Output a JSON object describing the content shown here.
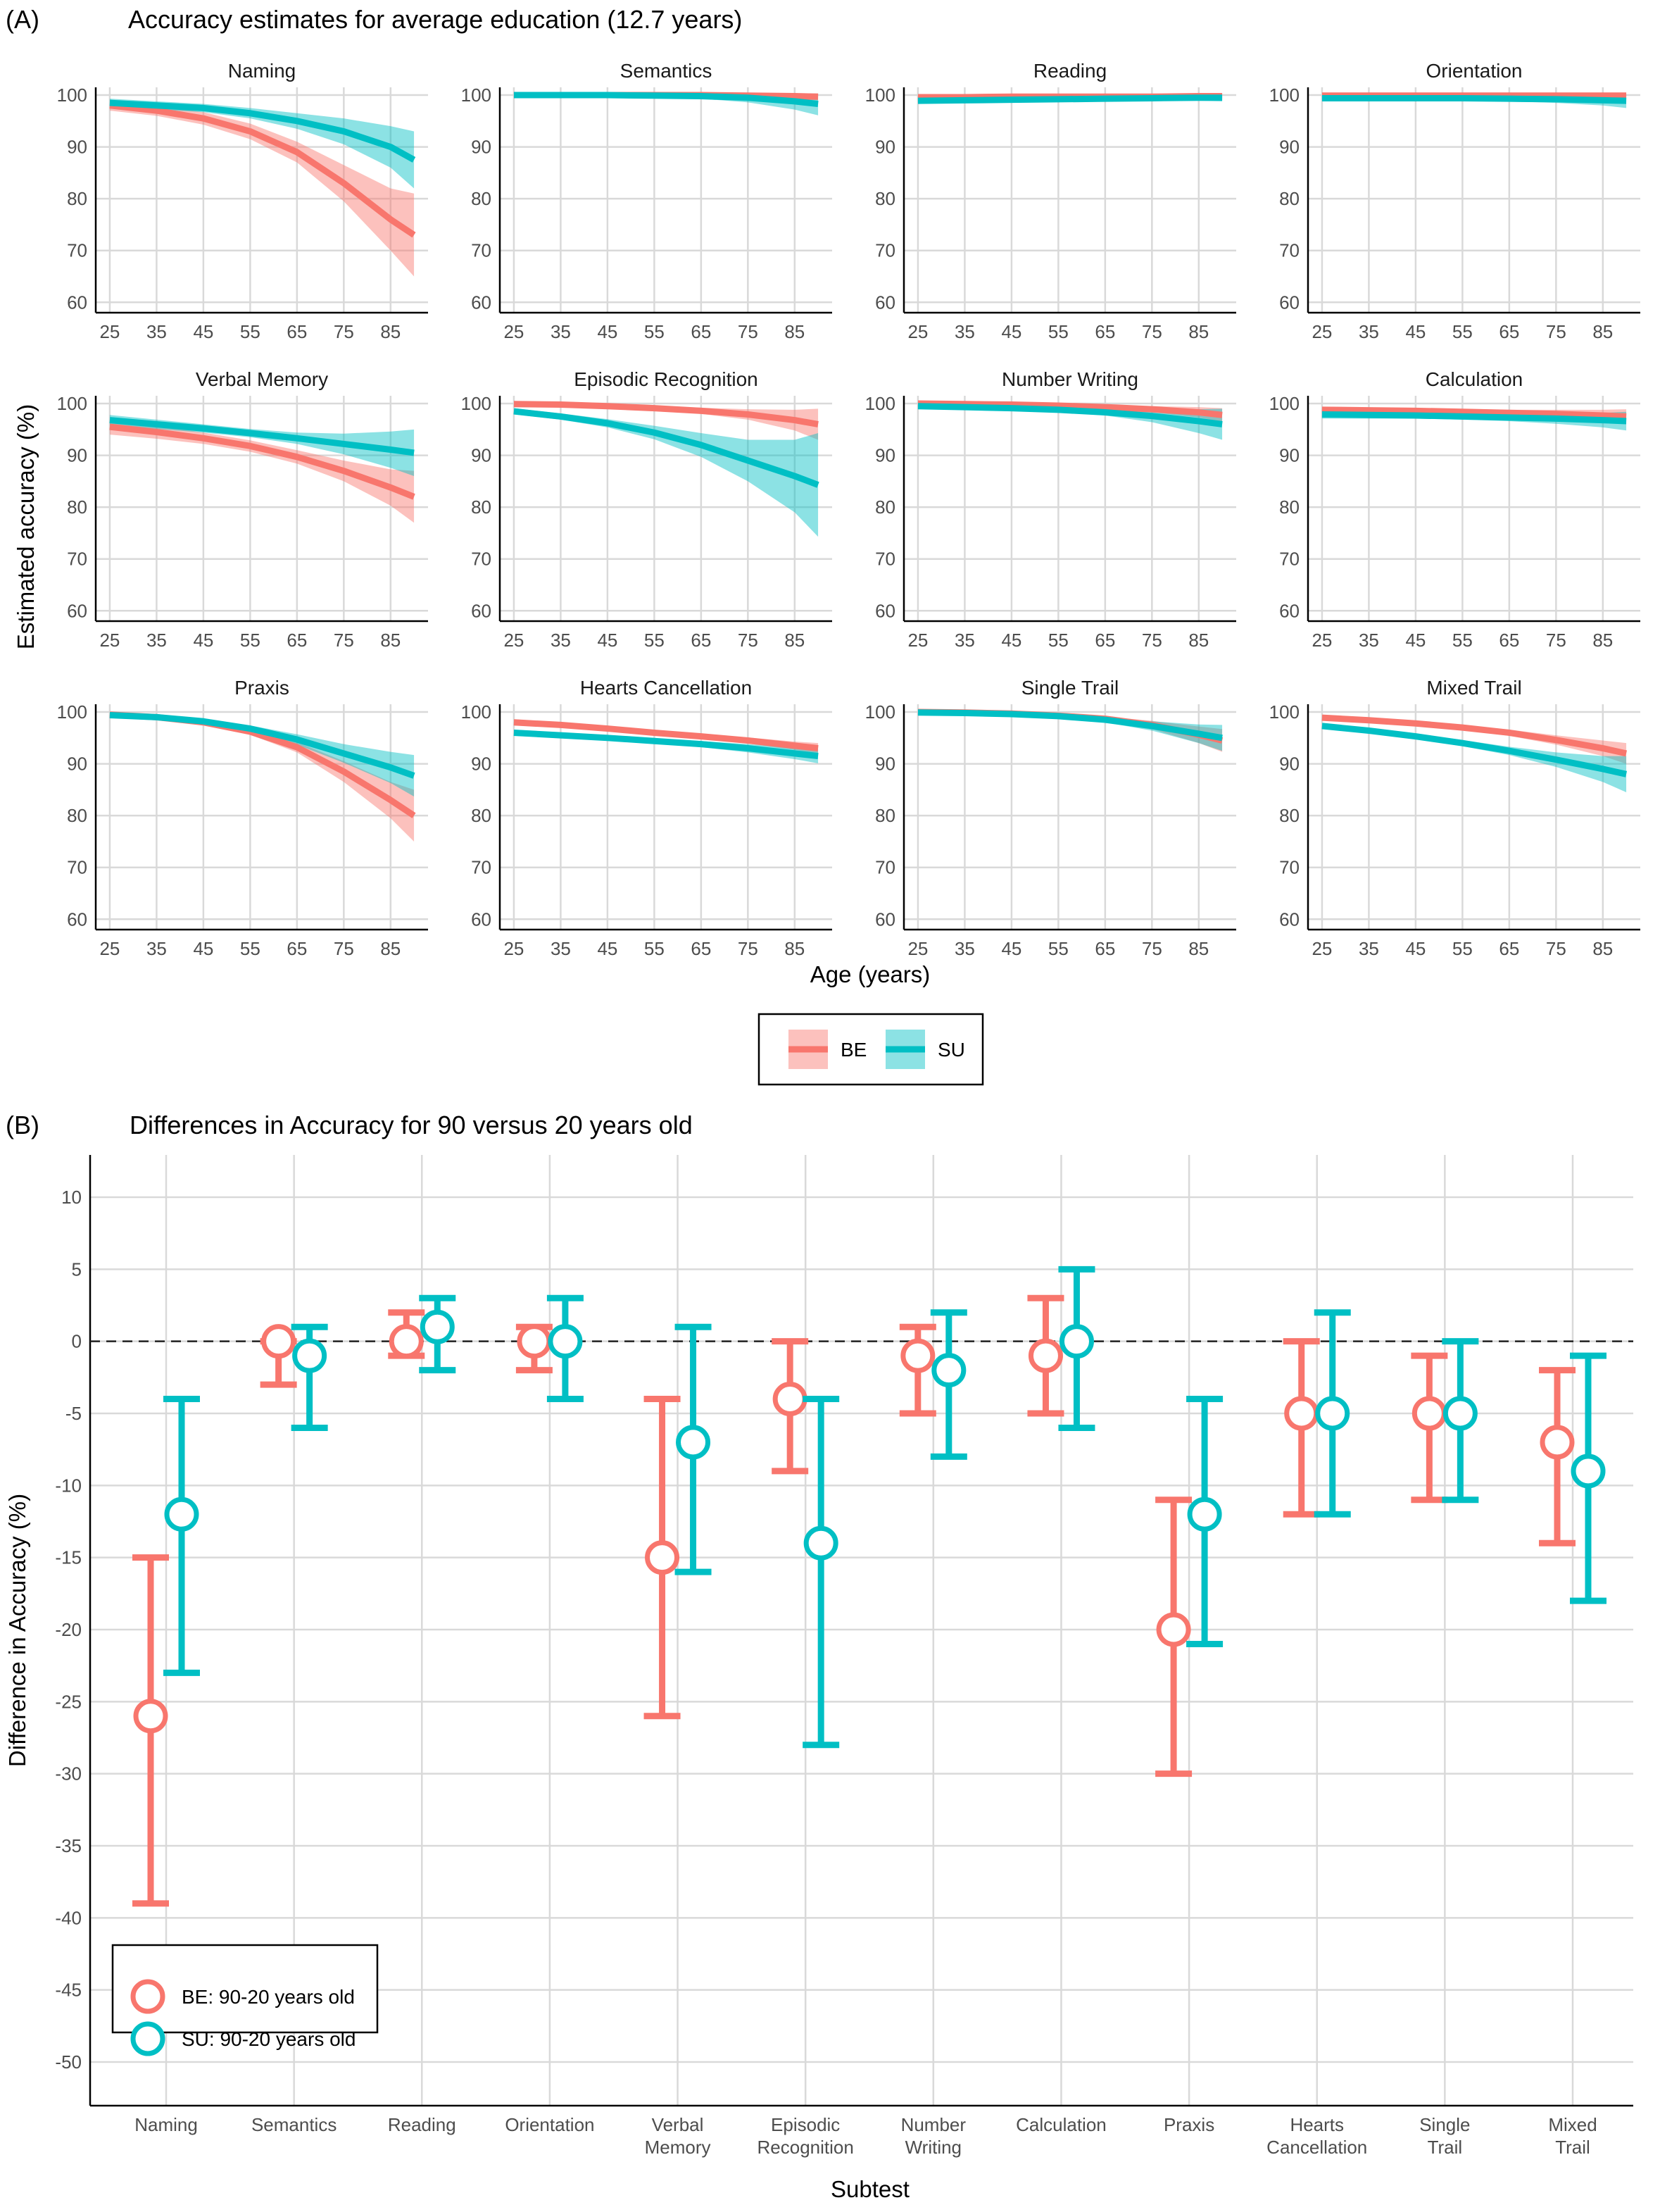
{
  "colors": {
    "BE": "#F8766D",
    "SU": "#00BFC4"
  },
  "chart_data": [
    {
      "type": "line",
      "panel_label": "(A)",
      "title": "Accuracy estimates for average education (12.7 years)",
      "xlabel": "Age (years)",
      "ylabel": "Estimated accuracy (%)",
      "xlim": [
        22,
        93
      ],
      "ylim": [
        58,
        101.5
      ],
      "x_ticks": [
        25,
        35,
        45,
        55,
        65,
        75,
        85
      ],
      "y_ticks": [
        60,
        70,
        80,
        90,
        100
      ],
      "grid": true,
      "legend": {
        "placement": "bottom",
        "entries": [
          "BE",
          "SU"
        ]
      },
      "x": [
        25,
        35,
        45,
        55,
        65,
        75,
        85,
        90
      ],
      "facets": [
        {
          "name": "Naming",
          "BE": {
            "values": [
              98,
              97,
              95.5,
              93,
              89,
              83,
              76,
              73
            ],
            "ci": [
              1,
              1,
              1.2,
              1.5,
              2,
              3.5,
              6,
              8
            ]
          },
          "SU": {
            "values": [
              98.5,
              98,
              97.5,
              96.5,
              95,
              93,
              90,
              87.5
            ],
            "ci": [
              0.8,
              0.8,
              0.8,
              1,
              1.5,
              2.5,
              4,
              5.5
            ]
          }
        },
        {
          "name": "Semantics",
          "BE": {
            "values": [
              100,
              100,
              100,
              100,
              100,
              99.9,
              99.8,
              99.7
            ],
            "ci": [
              0.2,
              0.2,
              0.2,
              0.2,
              0.3,
              0.4,
              0.6,
              0.7
            ]
          },
          "SU": {
            "values": [
              100,
              100,
              100,
              99.9,
              99.8,
              99.5,
              98.8,
              98.3
            ],
            "ci": [
              0.2,
              0.2,
              0.2,
              0.3,
              0.5,
              0.9,
              1.6,
              2.2
            ]
          }
        },
        {
          "name": "Reading",
          "BE": {
            "values": [
              99.6,
              99.6,
              99.7,
              99.7,
              99.7,
              99.7,
              99.8,
              99.8
            ],
            "ci": [
              0.3,
              0.3,
              0.3,
              0.3,
              0.3,
              0.3,
              0.3,
              0.3
            ]
          },
          "SU": {
            "values": [
              98.9,
              99,
              99.1,
              99.2,
              99.3,
              99.4,
              99.5,
              99.5
            ],
            "ci": [
              0.6,
              0.5,
              0.4,
              0.4,
              0.4,
              0.5,
              0.6,
              0.7
            ]
          }
        },
        {
          "name": "Orientation",
          "BE": {
            "values": [
              99.9,
              99.9,
              99.9,
              99.9,
              99.9,
              99.9,
              99.9,
              99.9
            ],
            "ci": [
              0.2,
              0.2,
              0.2,
              0.2,
              0.2,
              0.2,
              0.2,
              0.2
            ]
          },
          "SU": {
            "values": [
              99.4,
              99.4,
              99.4,
              99.4,
              99.3,
              99.2,
              99,
              98.9
            ],
            "ci": [
              0.4,
              0.4,
              0.4,
              0.4,
              0.5,
              0.7,
              1,
              1.4
            ]
          }
        },
        {
          "name": "Verbal Memory",
          "BE": {
            "values": [
              95.5,
              94.5,
              93.3,
              91.8,
              89.7,
              87,
              83.8,
              82
            ],
            "ci": [
              1.5,
              1.3,
              1.1,
              1.1,
              1.3,
              2,
              3.5,
              5
            ]
          },
          "SU": {
            "values": [
              96.8,
              96,
              95.2,
              94.3,
              93.3,
              92.2,
              91.1,
              90.5
            ],
            "ci": [
              1,
              0.9,
              0.8,
              0.8,
              1.1,
              2,
              3.5,
              4.5
            ]
          }
        },
        {
          "name": "Episodic Recognition",
          "BE": {
            "values": [
              99.9,
              99.8,
              99.5,
              99.1,
              98.6,
              97.9,
              96.8,
              96
            ],
            "ci": [
              0.2,
              0.2,
              0.3,
              0.4,
              0.6,
              1,
              2,
              3
            ]
          },
          "SU": {
            "values": [
              98.5,
              97.5,
              96.2,
              94.4,
              92,
              89,
              86,
              84.3
            ],
            "ci": [
              0.6,
              0.6,
              0.8,
              1.3,
              2.3,
              4,
              7,
              10
            ]
          }
        },
        {
          "name": "Number Writing",
          "BE": {
            "values": [
              100,
              99.9,
              99.8,
              99.6,
              99.3,
              98.9,
              98.3,
              97.8
            ],
            "ci": [
              0.2,
              0.2,
              0.2,
              0.3,
              0.4,
              0.6,
              1,
              1.3
            ]
          },
          "SU": {
            "values": [
              99.5,
              99.3,
              99.1,
              98.8,
              98.3,
              97.6,
              96.6,
              96
            ],
            "ci": [
              0.3,
              0.3,
              0.3,
              0.4,
              0.6,
              1.2,
              2.3,
              3
            ]
          }
        },
        {
          "name": "Calculation",
          "BE": {
            "values": [
              98.8,
              98.7,
              98.6,
              98.4,
              98.2,
              98,
              97.7,
              97.5
            ],
            "ci": [
              0.6,
              0.5,
              0.5,
              0.5,
              0.6,
              0.8,
              1.1,
              1.4
            ]
          },
          "SU": {
            "values": [
              97.9,
              97.8,
              97.7,
              97.5,
              97.3,
              97.1,
              96.8,
              96.6
            ],
            "ci": [
              0.8,
              0.7,
              0.6,
              0.6,
              0.7,
              1,
              1.4,
              1.8
            ]
          }
        },
        {
          "name": "Praxis",
          "BE": {
            "values": [
              99.5,
              99,
              98,
              96.2,
              93.2,
              88.5,
              83,
              80
            ],
            "ci": [
              0.3,
              0.3,
              0.4,
              0.6,
              1,
              2,
              3.5,
              5
            ]
          },
          "SU": {
            "values": [
              99.4,
              99,
              98.2,
              96.8,
              94.7,
              92,
              89.3,
              87.7
            ],
            "ci": [
              0.3,
              0.3,
              0.4,
              0.6,
              1,
              1.8,
              3,
              4
            ]
          }
        },
        {
          "name": "Hearts Cancellation",
          "BE": {
            "values": [
              98,
              97.5,
              96.8,
              96,
              95.3,
              94.5,
              93.5,
              93
            ],
            "ci": [
              0.6,
              0.5,
              0.5,
              0.5,
              0.5,
              0.6,
              0.8,
              1
            ]
          },
          "SU": {
            "values": [
              96,
              95.5,
              95,
              94.4,
              93.8,
              93,
              92,
              91.5
            ],
            "ci": [
              0.6,
              0.5,
              0.5,
              0.5,
              0.6,
              0.8,
              1.1,
              1.4
            ]
          }
        },
        {
          "name": "Single Trail",
          "BE": {
            "values": [
              100,
              99.9,
              99.7,
              99.3,
              98.7,
              97.5,
              95.6,
              94.5
            ],
            "ci": [
              0.2,
              0.2,
              0.2,
              0.3,
              0.4,
              0.8,
              1.6,
              2.2
            ]
          },
          "SU": {
            "values": [
              99.9,
              99.8,
              99.6,
              99.2,
              98.5,
              97.3,
              95.8,
              95
            ],
            "ci": [
              0.2,
              0.2,
              0.2,
              0.3,
              0.5,
              0.9,
              1.8,
              2.5
            ]
          }
        },
        {
          "name": "Mixed Trail",
          "BE": {
            "values": [
              98.9,
              98.4,
              97.8,
              97,
              96,
              94.6,
              93,
              92
            ],
            "ci": [
              0.5,
              0.5,
              0.5,
              0.5,
              0.6,
              0.9,
              1.5,
              2
            ]
          },
          "SU": {
            "values": [
              97.3,
              96.4,
              95.3,
              94,
              92.5,
              90.8,
              89,
              88
            ],
            "ci": [
              0.6,
              0.5,
              0.5,
              0.6,
              0.8,
              1.4,
              2.5,
              3.5
            ]
          }
        }
      ]
    },
    {
      "type": "errorbar",
      "panel_label": "(B)",
      "title": "Differences in Accuracy for 90 versus 20 years old",
      "xlabel": "Subtest",
      "ylabel": "Difference in Accuracy (%)",
      "ylim": [
        -53,
        13
      ],
      "y_ticks": [
        10,
        5,
        0,
        -5,
        -10,
        -15,
        -20,
        -25,
        -30,
        -35,
        -40,
        -45,
        -50
      ],
      "reference_line": 0,
      "grid": true,
      "legend": {
        "placement": "bottom-left",
        "entries": [
          "BE: 90-20 years old",
          "SU: 90-20 years old"
        ]
      },
      "categories": [
        "Naming",
        "Semantics",
        "Reading",
        "Orientation",
        "Verbal\nMemory",
        "Episodic\nRecognition",
        "Number\nWriting",
        "Calculation",
        "Praxis",
        "Hearts\nCancellation",
        "Single\nTrail",
        "Mixed\nTrail"
      ],
      "series": [
        {
          "name": "BE: 90-20 years old",
          "values": [
            -26,
            0,
            0,
            0,
            -15,
            -4,
            -1,
            -1,
            -20,
            -5,
            -5,
            -7
          ],
          "lower": [
            -39,
            -3,
            -1,
            -2,
            -26,
            -9,
            -5,
            -5,
            -30,
            -12,
            -11,
            -14
          ],
          "upper": [
            -15,
            0,
            2,
            1,
            -4,
            0,
            1,
            3,
            -11,
            0,
            -1,
            -2
          ]
        },
        {
          "name": "SU: 90-20 years old",
          "values": [
            -12,
            -1,
            1,
            0,
            -7,
            -14,
            -2,
            0,
            -12,
            -5,
            -5,
            -9
          ],
          "lower": [
            -23,
            -6,
            -2,
            -4,
            -16,
            -28,
            -8,
            -6,
            -21,
            -12,
            -11,
            -18
          ],
          "upper": [
            -4,
            1,
            3,
            3,
            1,
            -4,
            2,
            5,
            -4,
            2,
            0,
            -1
          ]
        }
      ]
    }
  ]
}
